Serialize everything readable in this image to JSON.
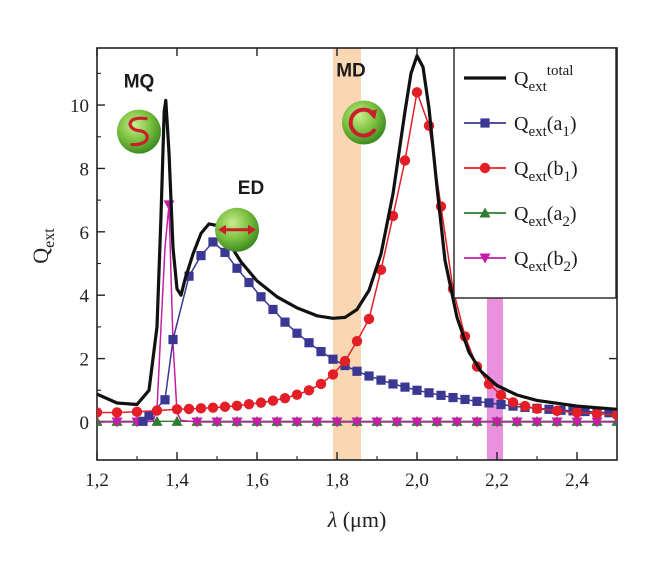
{
  "chart_data": {
    "type": "line",
    "xlabel_symbol": "λ",
    "xlabel_unit": " (μm)",
    "ylabel_main": "Q",
    "ylabel_sub": "ext",
    "xlim": [
      1.2,
      2.5
    ],
    "ylim": [
      -1.2,
      11.8
    ],
    "x_ticks": [
      {
        "v": 1.2,
        "label": "1,2"
      },
      {
        "v": 1.4,
        "label": "1,4"
      },
      {
        "v": 1.6,
        "label": "1,6"
      },
      {
        "v": 1.8,
        "label": "1,8"
      },
      {
        "v": 2.0,
        "label": "2,0"
      },
      {
        "v": 2.2,
        "label": "2,2"
      },
      {
        "v": 2.4,
        "label": "2,4"
      }
    ],
    "y_ticks": [
      {
        "v": 0,
        "label": "0"
      },
      {
        "v": 2,
        "label": "2"
      },
      {
        "v": 4,
        "label": "4"
      },
      {
        "v": 6,
        "label": "6"
      },
      {
        "v": 8,
        "label": "8"
      },
      {
        "v": 10,
        "label": "10"
      }
    ],
    "bands": [
      {
        "name": "MD",
        "x0": 1.79,
        "x1": 1.86,
        "color": "#f8c99a",
        "opacity": 0.75
      },
      {
        "name": "b2",
        "x0": 2.175,
        "x1": 2.215,
        "color": "#dd55cc",
        "opacity": 0.65
      }
    ],
    "annotations": [
      {
        "label": "MQ",
        "x": 1.305,
        "y": 10.55,
        "icon": "mq"
      },
      {
        "label": "ED",
        "x": 1.585,
        "y": 7.2,
        "icon": "ed"
      },
      {
        "label": "MD",
        "x": 1.835,
        "y": 10.9,
        "icon": "md"
      }
    ],
    "legend": {
      "position": "top-right",
      "entries": [
        {
          "main": "Q",
          "sub": "ext",
          "sup": "total",
          "suffix": ""
        },
        {
          "main": "Q",
          "sub": "ext",
          "sup": "",
          "suffix": "(a",
          "suffix_sub": "1",
          "close": ")"
        },
        {
          "main": "Q",
          "sub": "ext",
          "sup": "",
          "suffix": "(b",
          "suffix_sub": "1",
          "close": ")"
        },
        {
          "main": "Q",
          "sub": "ext",
          "sup": "",
          "suffix": "(a",
          "suffix_sub": "2",
          "close": ")"
        },
        {
          "main": "Q",
          "sub": "ext",
          "sup": "",
          "suffix": "(b",
          "suffix_sub": "2",
          "close": ")"
        }
      ]
    },
    "series": [
      {
        "key": "total",
        "color": "#111111",
        "width": 3.2,
        "marker": "none",
        "points": [
          [
            1.2,
            0.88
          ],
          [
            1.25,
            0.6
          ],
          [
            1.3,
            0.55
          ],
          [
            1.33,
            1.0
          ],
          [
            1.35,
            3.0
          ],
          [
            1.36,
            6.5
          ],
          [
            1.368,
            9.8
          ],
          [
            1.372,
            10.15
          ],
          [
            1.38,
            8.5
          ],
          [
            1.39,
            5.5
          ],
          [
            1.4,
            4.2
          ],
          [
            1.41,
            4.0
          ],
          [
            1.42,
            4.5
          ],
          [
            1.44,
            5.3
          ],
          [
            1.46,
            5.95
          ],
          [
            1.48,
            6.25
          ],
          [
            1.5,
            6.2
          ],
          [
            1.53,
            5.65
          ],
          [
            1.56,
            5.05
          ],
          [
            1.6,
            4.45
          ],
          [
            1.65,
            3.95
          ],
          [
            1.7,
            3.6
          ],
          [
            1.75,
            3.35
          ],
          [
            1.79,
            3.27
          ],
          [
            1.82,
            3.3
          ],
          [
            1.85,
            3.55
          ],
          [
            1.88,
            4.15
          ],
          [
            1.91,
            5.3
          ],
          [
            1.94,
            7.2
          ],
          [
            1.97,
            9.8
          ],
          [
            1.985,
            11.0
          ],
          [
            2.0,
            11.55
          ],
          [
            2.015,
            11.2
          ],
          [
            2.03,
            9.9
          ],
          [
            2.05,
            7.4
          ],
          [
            2.07,
            5.1
          ],
          [
            2.1,
            3.3
          ],
          [
            2.13,
            2.2
          ],
          [
            2.16,
            1.6
          ],
          [
            2.2,
            1.15
          ],
          [
            2.25,
            0.85
          ],
          [
            2.3,
            0.68
          ],
          [
            2.4,
            0.5
          ],
          [
            2.5,
            0.4
          ]
        ]
      },
      {
        "key": "a1",
        "color": "#3b3893",
        "width": 1.5,
        "marker": "square",
        "points": [
          [
            1.315,
            0.02
          ],
          [
            1.33,
            0.2
          ],
          [
            1.37,
            0.7
          ],
          [
            1.39,
            2.6
          ],
          [
            1.43,
            4.6
          ],
          [
            1.46,
            5.25
          ],
          [
            1.49,
            5.68
          ],
          [
            1.52,
            5.35
          ],
          [
            1.55,
            4.85
          ],
          [
            1.58,
            4.4
          ],
          [
            1.61,
            3.95
          ],
          [
            1.64,
            3.55
          ],
          [
            1.67,
            3.15
          ],
          [
            1.7,
            2.8
          ],
          [
            1.73,
            2.5
          ],
          [
            1.76,
            2.22
          ],
          [
            1.79,
            1.98
          ],
          [
            1.82,
            1.78
          ],
          [
            1.85,
            1.6
          ],
          [
            1.88,
            1.45
          ],
          [
            1.91,
            1.32
          ],
          [
            1.94,
            1.2
          ],
          [
            1.97,
            1.1
          ],
          [
            2.0,
            1.0
          ],
          [
            2.03,
            0.92
          ],
          [
            2.06,
            0.84
          ],
          [
            2.09,
            0.77
          ],
          [
            2.12,
            0.71
          ],
          [
            2.15,
            0.65
          ],
          [
            2.18,
            0.6
          ],
          [
            2.21,
            0.55
          ],
          [
            2.24,
            0.5
          ],
          [
            2.27,
            0.46
          ],
          [
            2.3,
            0.43
          ],
          [
            2.33,
            0.4
          ],
          [
            2.36,
            0.37
          ],
          [
            2.39,
            0.35
          ],
          [
            2.42,
            0.33
          ],
          [
            2.45,
            0.31
          ],
          [
            2.48,
            0.29
          ]
        ]
      },
      {
        "key": "b1",
        "color": "#e41e26",
        "width": 1.5,
        "marker": "circle",
        "points": [
          [
            1.2,
            0.3
          ],
          [
            1.25,
            0.3
          ],
          [
            1.3,
            0.32
          ],
          [
            1.35,
            0.36
          ],
          [
            1.4,
            0.4
          ],
          [
            1.43,
            0.41
          ],
          [
            1.46,
            0.43
          ],
          [
            1.49,
            0.45
          ],
          [
            1.52,
            0.48
          ],
          [
            1.55,
            0.51
          ],
          [
            1.58,
            0.56
          ],
          [
            1.61,
            0.61
          ],
          [
            1.64,
            0.67
          ],
          [
            1.67,
            0.75
          ],
          [
            1.7,
            0.86
          ],
          [
            1.73,
            1.0
          ],
          [
            1.76,
            1.2
          ],
          [
            1.79,
            1.5
          ],
          [
            1.82,
            1.92
          ],
          [
            1.85,
            2.55
          ],
          [
            1.88,
            3.25
          ],
          [
            1.91,
            4.8
          ],
          [
            1.94,
            6.5
          ],
          [
            1.97,
            8.25
          ],
          [
            2.0,
            10.4
          ],
          [
            2.03,
            9.35
          ],
          [
            2.06,
            6.8
          ],
          [
            2.09,
            4.2
          ],
          [
            2.12,
            2.7
          ],
          [
            2.15,
            1.75
          ],
          [
            2.18,
            1.2
          ],
          [
            2.21,
            0.85
          ],
          [
            2.24,
            0.62
          ],
          [
            2.27,
            0.5
          ],
          [
            2.3,
            0.42
          ],
          [
            2.35,
            0.35
          ],
          [
            2.4,
            0.3
          ],
          [
            2.45,
            0.26
          ],
          [
            2.5,
            0.22
          ]
        ]
      },
      {
        "key": "a2",
        "color": "#2e7d32",
        "width": 1.3,
        "marker": "triangle-up",
        "points": [
          [
            1.2,
            0.02
          ],
          [
            1.25,
            0.02
          ],
          [
            1.3,
            0.02
          ],
          [
            1.35,
            0.02
          ],
          [
            1.4,
            0.02
          ],
          [
            1.45,
            0.02
          ],
          [
            1.5,
            0.02
          ],
          [
            1.55,
            0.02
          ],
          [
            1.6,
            0.02
          ],
          [
            1.65,
            0.02
          ],
          [
            1.7,
            0.02
          ],
          [
            1.75,
            0.02
          ],
          [
            1.8,
            0.02
          ],
          [
            1.85,
            0.02
          ],
          [
            1.9,
            0.02
          ],
          [
            1.95,
            0.02
          ],
          [
            2.0,
            0.02
          ],
          [
            2.05,
            0.02
          ],
          [
            2.1,
            0.02
          ],
          [
            2.15,
            0.02
          ],
          [
            2.2,
            0.02
          ],
          [
            2.25,
            0.02
          ],
          [
            2.3,
            0.02
          ],
          [
            2.35,
            0.02
          ],
          [
            2.4,
            0.02
          ],
          [
            2.45,
            0.02
          ],
          [
            2.5,
            0.02
          ]
        ]
      },
      {
        "key": "b2",
        "color": "#c61ca8",
        "width": 1.5,
        "marker": "triangle-down",
        "points": [
          [
            1.2,
            0.0
          ],
          [
            1.25,
            0.0
          ],
          [
            1.3,
            0.0
          ],
          [
            1.34,
            0.02
          ],
          [
            1.35,
            0.4
          ],
          [
            1.36,
            3.0
          ],
          [
            1.37,
            5.5
          ],
          [
            1.38,
            6.85
          ],
          [
            1.39,
            2.5
          ],
          [
            1.4,
            0.3
          ],
          [
            1.41,
            0.05
          ],
          [
            1.45,
            0.0
          ],
          [
            1.5,
            0.0
          ],
          [
            1.55,
            0.0
          ],
          [
            1.6,
            0.0
          ],
          [
            1.65,
            0.0
          ],
          [
            1.7,
            0.0
          ],
          [
            1.75,
            0.0
          ],
          [
            1.8,
            0.0
          ],
          [
            1.85,
            0.0
          ],
          [
            1.9,
            0.0
          ],
          [
            1.95,
            0.0
          ],
          [
            2.0,
            0.0
          ],
          [
            2.05,
            0.0
          ],
          [
            2.1,
            0.0
          ],
          [
            2.15,
            0.0
          ],
          [
            2.2,
            0.0
          ],
          [
            2.25,
            0.0
          ],
          [
            2.3,
            0.0
          ],
          [
            2.35,
            0.0
          ],
          [
            2.4,
            0.0
          ],
          [
            2.45,
            0.0
          ],
          [
            2.5,
            0.0
          ]
        ],
        "markers_at": [
          1.25,
          1.3,
          1.38,
          1.45,
          1.5,
          1.55,
          1.6,
          1.65,
          1.7,
          1.75,
          1.8,
          1.85,
          1.9,
          1.95,
          2.0,
          2.05,
          2.1,
          2.15,
          2.2,
          2.25,
          2.3,
          2.35,
          2.4,
          2.45
        ]
      }
    ]
  }
}
